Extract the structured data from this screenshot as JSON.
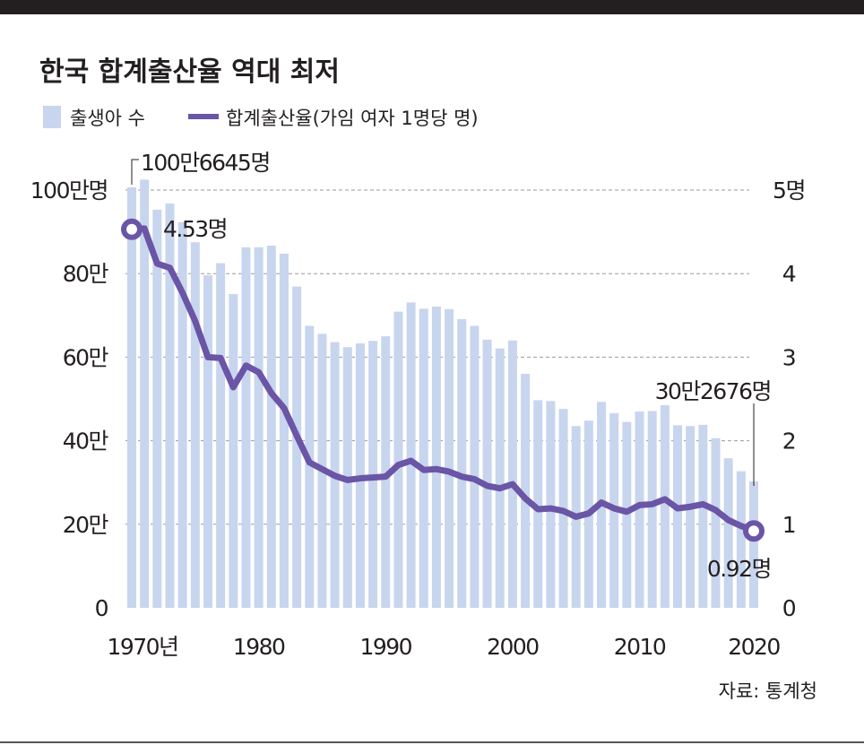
{
  "title": "한국 합계출산율 역대 최저",
  "legend": {
    "bars": "출생아 수",
    "line": "합계출산율(가임 여자 1명당 명)"
  },
  "source": "자료: 통계청",
  "colors": {
    "bars": "#c8d5ee",
    "line": "#6a55a6",
    "band": "#231f20",
    "grid": "#9a9a9a"
  },
  "chart_data": {
    "type": "bar+line",
    "title": "한국 합계출산율 역대 최저",
    "x": [
      1970,
      1971,
      1972,
      1973,
      1974,
      1975,
      1976,
      1977,
      1978,
      1979,
      1980,
      1981,
      1982,
      1983,
      1984,
      1985,
      1986,
      1987,
      1988,
      1989,
      1990,
      1991,
      1992,
      1993,
      1994,
      1995,
      1996,
      1997,
      1998,
      1999,
      2000,
      2001,
      2002,
      2003,
      2004,
      2005,
      2006,
      2007,
      2008,
      2009,
      2010,
      2011,
      2012,
      2013,
      2014,
      2015,
      2016,
      2017,
      2018,
      2019
    ],
    "series": [
      {
        "name": "출생아 수",
        "unit": "만명",
        "axis": "left",
        "values": [
          100.66,
          102.5,
          95.3,
          96.8,
          92.3,
          87.5,
          79.6,
          82.5,
          75.1,
          86.3,
          86.3,
          86.7,
          84.8,
          76.9,
          67.5,
          65.6,
          63.6,
          62.4,
          63.3,
          63.9,
          65.0,
          70.9,
          73.1,
          71.6,
          72.1,
          71.5,
          69.1,
          67.5,
          64.2,
          62.1,
          64.0,
          56.0,
          49.7,
          49.5,
          47.6,
          43.5,
          44.8,
          49.3,
          46.6,
          44.5,
          47.0,
          47.1,
          48.5,
          43.7,
          43.5,
          43.8,
          40.6,
          35.8,
          32.7,
          30.27
        ]
      },
      {
        "name": "합계출산율",
        "unit": "명",
        "axis": "right",
        "values": [
          4.53,
          4.54,
          4.12,
          4.07,
          3.77,
          3.43,
          3.0,
          2.99,
          2.64,
          2.9,
          2.82,
          2.57,
          2.39,
          2.06,
          1.74,
          1.66,
          1.58,
          1.53,
          1.55,
          1.56,
          1.57,
          1.71,
          1.76,
          1.65,
          1.66,
          1.63,
          1.57,
          1.54,
          1.46,
          1.43,
          1.48,
          1.31,
          1.18,
          1.19,
          1.16,
          1.09,
          1.13,
          1.26,
          1.19,
          1.15,
          1.23,
          1.24,
          1.3,
          1.19,
          1.21,
          1.24,
          1.17,
          1.05,
          0.98,
          0.92
        ]
      }
    ],
    "left_axis": {
      "ylim": [
        0,
        100
      ],
      "ticks": [
        0,
        20,
        40,
        60,
        80,
        100
      ],
      "labels": [
        "0",
        "20만",
        "40만",
        "60만",
        "80만",
        "100만명"
      ]
    },
    "right_axis": {
      "ylim": [
        0,
        5
      ],
      "ticks": [
        0,
        1,
        2,
        3,
        4,
        5
      ],
      "labels": [
        "0",
        "1",
        "2",
        "3",
        "4",
        "5명"
      ]
    },
    "x_ticks": {
      "values": [
        1970,
        1980,
        1990,
        2000,
        2010,
        2020
      ],
      "labels": [
        "1970년",
        "1980",
        "1990",
        "2000",
        "2010",
        "2020"
      ]
    },
    "grid": true,
    "annotations": {
      "first_births": "100만6645명",
      "first_rate": "4.53명",
      "last_births": "30만2676명",
      "last_rate": "0.92명"
    }
  }
}
